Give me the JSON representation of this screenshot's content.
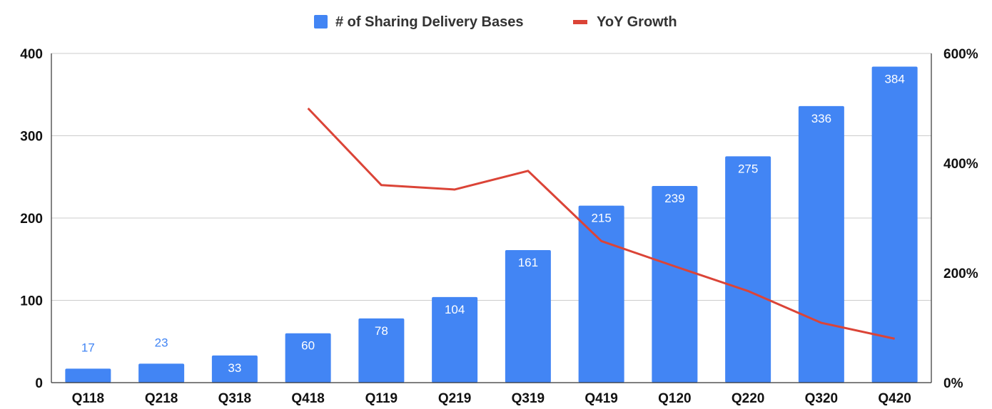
{
  "chart_data": {
    "type": "bar",
    "categories": [
      "Q118",
      "Q218",
      "Q318",
      "Q418",
      "Q119",
      "Q219",
      "Q319",
      "Q419",
      "Q120",
      "Q220",
      "Q320",
      "Q420"
    ],
    "series": [
      {
        "name": "# of Sharing Delivery Bases",
        "type": "bar",
        "axis": "left",
        "color": "#4285F4",
        "values": [
          17,
          23,
          33,
          60,
          78,
          104,
          161,
          215,
          239,
          275,
          336,
          384
        ],
        "labels": [
          "17",
          "23",
          "33",
          "60",
          "78",
          "104",
          "161",
          "215",
          "239",
          "275",
          "336",
          "384"
        ]
      },
      {
        "name": "YoY Growth",
        "type": "line",
        "axis": "right",
        "color": "#DB4437",
        "values": [
          null,
          null,
          null,
          500,
          360,
          352,
          386,
          258,
          212,
          167,
          109,
          80
        ]
      }
    ],
    "y_left": {
      "ylim": [
        0,
        400
      ],
      "ticks": [
        "0",
        "100",
        "200",
        "300",
        "400"
      ],
      "tick_values": [
        0,
        100,
        200,
        300,
        400
      ]
    },
    "y_right": {
      "ylim": [
        0,
        600
      ],
      "ticks": [
        "0%",
        "200%",
        "400%",
        "600%"
      ],
      "tick_values": [
        0,
        200,
        400,
        600
      ]
    },
    "grid": true,
    "legend_position": "top-center",
    "title": "",
    "xlabel": "",
    "ylabel": ""
  }
}
